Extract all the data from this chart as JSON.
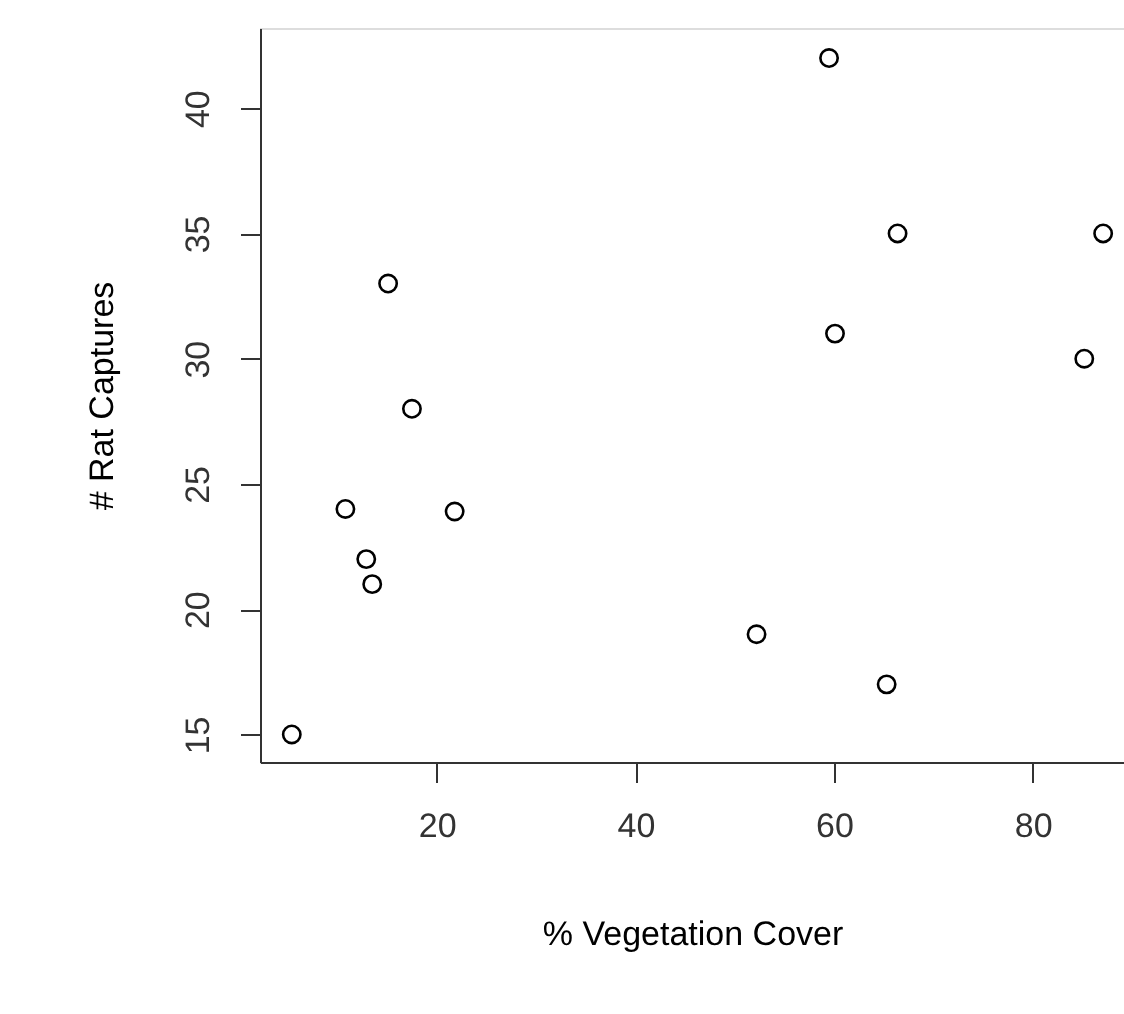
{
  "chart_data": {
    "type": "scatter",
    "xlabel": "% Vegetation Cover",
    "ylabel": "# Rat Captures",
    "x": [
      5.4,
      10.8,
      12.9,
      13.5,
      15.1,
      17.5,
      21.8,
      52.2,
      59.5,
      60.1,
      65.3,
      66.4,
      85.2,
      87.1
    ],
    "series": [
      {
        "color": "#000000",
        "values": [
          15,
          24,
          22,
          21,
          33,
          28,
          23.9,
          19,
          42,
          31,
          17,
          35,
          30,
          35
        ]
      }
    ],
    "xlim": [
      2.2,
      89.2
    ],
    "ylim": [
      13.9,
      43.2
    ],
    "xticks": [
      20,
      40,
      60,
      80
    ],
    "yticks": [
      15,
      20,
      25,
      30,
      35,
      40
    ],
    "marker": "circle",
    "grid": false
  }
}
